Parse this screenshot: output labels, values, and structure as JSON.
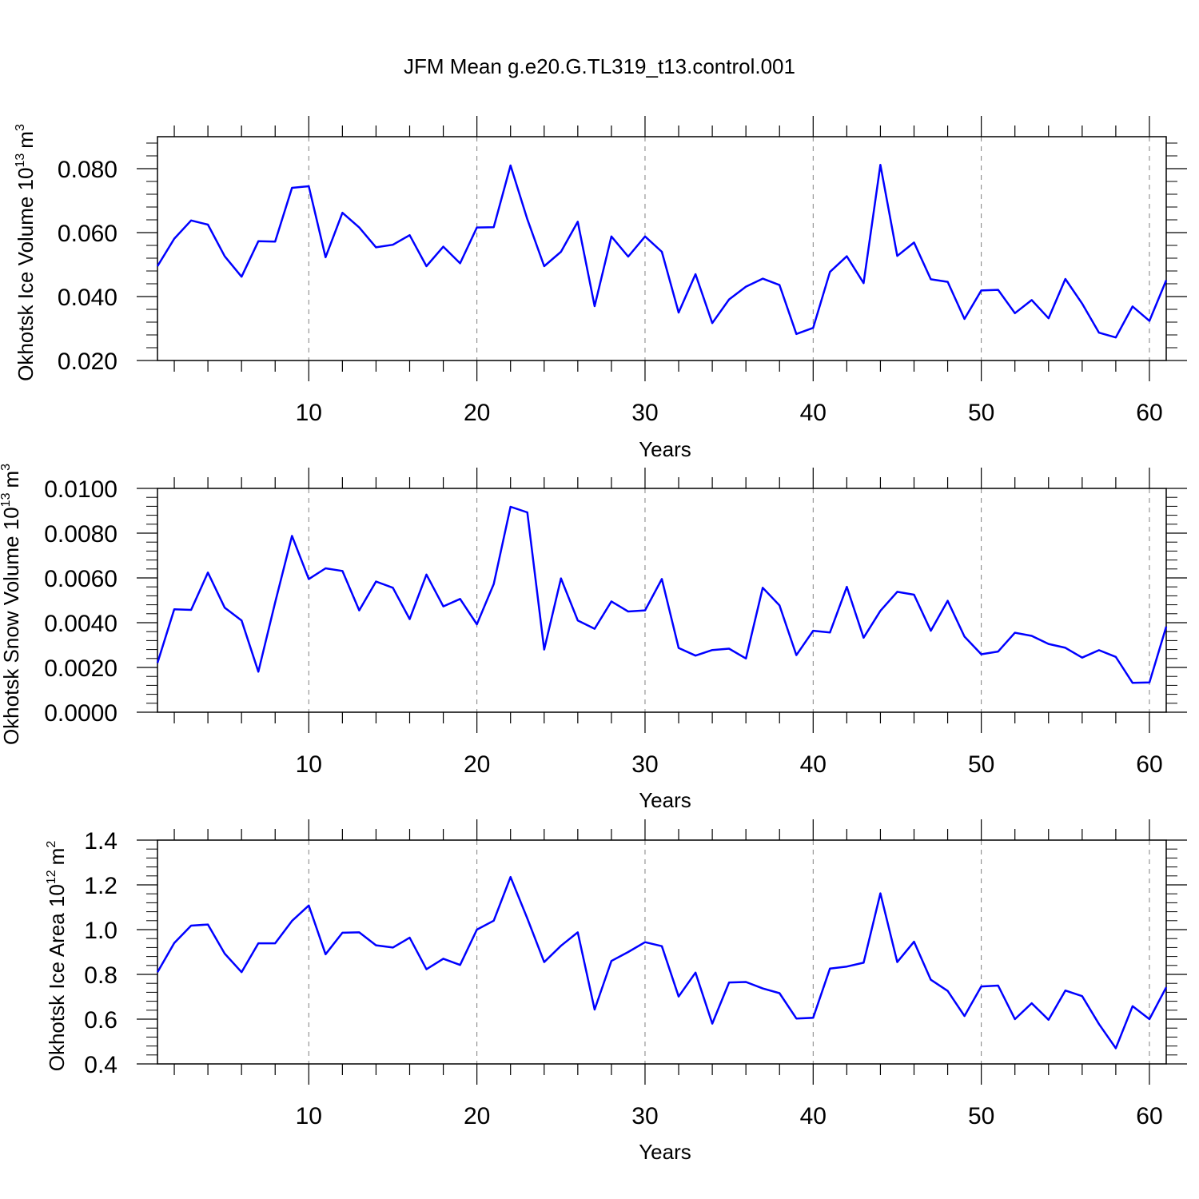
{
  "title": "JFM Mean g.e20.G.TL319_t13.control.001",
  "line_color": "#0000ff",
  "chart_data": [
    {
      "type": "line",
      "name": "ice-volume",
      "ylabel": "Okhotsk Ice Volume 10",
      "ylabel_exp": "13",
      "ylabel_unit": "m",
      "ylabel_unit_exp": "3",
      "xlabel": "Years",
      "xlim": [
        1,
        61
      ],
      "ylim": [
        0.02,
        0.09
      ],
      "xticks": [
        10,
        20,
        30,
        40,
        50,
        60
      ],
      "yticks": [
        0.02,
        0.04,
        0.06,
        0.08
      ],
      "ytick_labels": [
        "0.020",
        "0.040",
        "0.060",
        "0.080"
      ],
      "x": [
        1,
        2,
        3,
        4,
        5,
        6,
        7,
        8,
        9,
        10,
        11,
        12,
        13,
        14,
        15,
        16,
        17,
        18,
        19,
        20,
        21,
        22,
        23,
        24,
        25,
        26,
        27,
        28,
        29,
        30,
        31,
        32,
        33,
        34,
        35,
        36,
        37,
        38,
        39,
        40,
        41,
        42,
        43,
        44,
        45,
        46,
        47,
        48,
        49,
        50,
        51,
        52,
        53,
        54,
        55,
        56,
        57,
        58,
        59,
        60,
        61
      ],
      "values": [
        0.0495,
        0.0581,
        0.0638,
        0.0625,
        0.0526,
        0.0462,
        0.0573,
        0.0572,
        0.074,
        0.0745,
        0.0523,
        0.0662,
        0.0616,
        0.0554,
        0.0562,
        0.0592,
        0.0495,
        0.0556,
        0.0504,
        0.0616,
        0.0617,
        0.081,
        0.0642,
        0.0495,
        0.054,
        0.0634,
        0.037,
        0.0588,
        0.0525,
        0.0588,
        0.054,
        0.035,
        0.047,
        0.0317,
        0.0391,
        0.0431,
        0.0456,
        0.0436,
        0.0283,
        0.0302,
        0.0477,
        0.0526,
        0.0442,
        0.0812,
        0.0527,
        0.0569,
        0.0454,
        0.0446,
        0.033,
        0.0419,
        0.0421,
        0.0348,
        0.0389,
        0.0332,
        0.0455,
        0.0378,
        0.0287,
        0.0272,
        0.0369,
        0.0324,
        0.0451
      ]
    },
    {
      "type": "line",
      "name": "snow-volume",
      "ylabel": "Okhotsk Snow Volume 10",
      "ylabel_exp": "13",
      "ylabel_unit": "m",
      "ylabel_unit_exp": "3",
      "xlabel": "Years",
      "xlim": [
        1,
        61
      ],
      "ylim": [
        0.0,
        0.01
      ],
      "xticks": [
        10,
        20,
        30,
        40,
        50,
        60
      ],
      "yticks": [
        0.0,
        0.002,
        0.004,
        0.006,
        0.008,
        0.01
      ],
      "ytick_labels": [
        "0.0000",
        "0.0020",
        "0.0040",
        "0.0060",
        "0.0080",
        "0.0100"
      ],
      "x": [
        1,
        2,
        3,
        4,
        5,
        6,
        7,
        8,
        9,
        10,
        11,
        12,
        13,
        14,
        15,
        16,
        17,
        18,
        19,
        20,
        21,
        22,
        23,
        24,
        25,
        26,
        27,
        28,
        29,
        30,
        31,
        32,
        33,
        34,
        35,
        36,
        37,
        38,
        39,
        40,
        41,
        42,
        43,
        44,
        45,
        46,
        47,
        48,
        49,
        50,
        51,
        52,
        53,
        54,
        55,
        56,
        57,
        58,
        59,
        60,
        61
      ],
      "values": [
        0.0022,
        0.0046,
        0.00457,
        0.00624,
        0.00467,
        0.0041,
        0.00181,
        0.0049,
        0.00788,
        0.00595,
        0.00643,
        0.00631,
        0.00455,
        0.00584,
        0.00556,
        0.00416,
        0.00615,
        0.00473,
        0.00506,
        0.00393,
        0.00573,
        0.00918,
        0.00893,
        0.0028,
        0.00598,
        0.0041,
        0.00373,
        0.00495,
        0.0045,
        0.00455,
        0.00595,
        0.00287,
        0.00253,
        0.00278,
        0.00284,
        0.0024,
        0.00556,
        0.00477,
        0.00255,
        0.00364,
        0.00356,
        0.0056,
        0.00333,
        0.00453,
        0.00538,
        0.00525,
        0.00364,
        0.00498,
        0.00338,
        0.00259,
        0.00271,
        0.00355,
        0.00341,
        0.00305,
        0.00288,
        0.00244,
        0.00277,
        0.00247,
        0.00131,
        0.00133,
        0.00382
      ]
    },
    {
      "type": "line",
      "name": "ice-area",
      "ylabel": "Okhotsk Ice Area 10",
      "ylabel_exp": "12",
      "ylabel_unit": "m",
      "ylabel_unit_exp": "2",
      "xlabel": "Years",
      "xlim": [
        1,
        61
      ],
      "ylim": [
        0.4,
        1.4
      ],
      "xticks": [
        10,
        20,
        30,
        40,
        50,
        60
      ],
      "yticks": [
        0.4,
        0.6,
        0.8,
        1.0,
        1.2,
        1.4
      ],
      "ytick_labels": [
        "0.4",
        "0.6",
        "0.8",
        "1.0",
        "1.2",
        "1.4"
      ],
      "x": [
        1,
        2,
        3,
        4,
        5,
        6,
        7,
        8,
        9,
        10,
        11,
        12,
        13,
        14,
        15,
        16,
        17,
        18,
        19,
        20,
        21,
        22,
        23,
        24,
        25,
        26,
        27,
        28,
        29,
        30,
        31,
        32,
        33,
        34,
        35,
        36,
        37,
        38,
        39,
        40,
        41,
        42,
        43,
        44,
        45,
        46,
        47,
        48,
        49,
        50,
        51,
        52,
        53,
        54,
        55,
        56,
        57,
        58,
        59,
        60,
        61
      ],
      "values": [
        0.81,
        0.94,
        1.018,
        1.023,
        0.893,
        0.81,
        0.939,
        0.939,
        1.039,
        1.108,
        0.89,
        0.986,
        0.988,
        0.93,
        0.92,
        0.964,
        0.823,
        0.87,
        0.842,
        1.0,
        1.04,
        1.235,
        1.05,
        0.855,
        0.928,
        0.988,
        0.643,
        0.86,
        0.9,
        0.944,
        0.926,
        0.701,
        0.808,
        0.58,
        0.764,
        0.766,
        0.737,
        0.716,
        0.603,
        0.606,
        0.826,
        0.835,
        0.852,
        1.162,
        0.855,
        0.946,
        0.776,
        0.726,
        0.614,
        0.746,
        0.75,
        0.6,
        0.671,
        0.597,
        0.728,
        0.703,
        0.578,
        0.47,
        0.658,
        0.6,
        0.742
      ]
    }
  ]
}
